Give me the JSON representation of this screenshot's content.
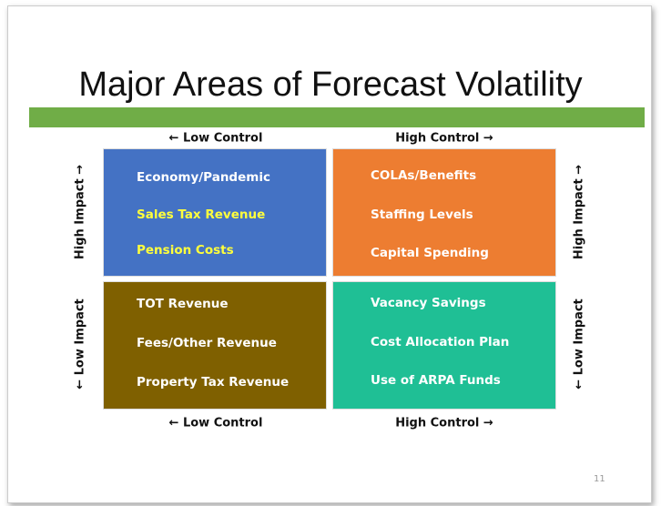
{
  "title": "Major Areas of Forecast Volatility",
  "axis_labels": {
    "top_left": "← Low Control",
    "top_right": "High Control →",
    "bottom_left": "← Low Control",
    "bottom_right": "High Control →",
    "left_top": "High Impact →",
    "left_bottom": "← Low Impact",
    "right_top": "High Impact →",
    "right_bottom": "← Low Impact"
  },
  "quadrants": [
    {
      "items": [
        "Economy/Pandemic",
        "Sales Tax Revenue",
        "Pension Costs"
      ]
    },
    {
      "items": [
        "COLAs/Benefits",
        "Staffing Levels",
        "Capital Spending"
      ]
    },
    {
      "items": [
        "TOT Revenue",
        "Fees/Other Revenue",
        "Property Tax Revenue"
      ]
    },
    {
      "items": [
        "Vacancy Savings",
        "Cost Allocation Plan",
        "Use of ARPA Funds"
      ]
    }
  ],
  "page_number": "11"
}
